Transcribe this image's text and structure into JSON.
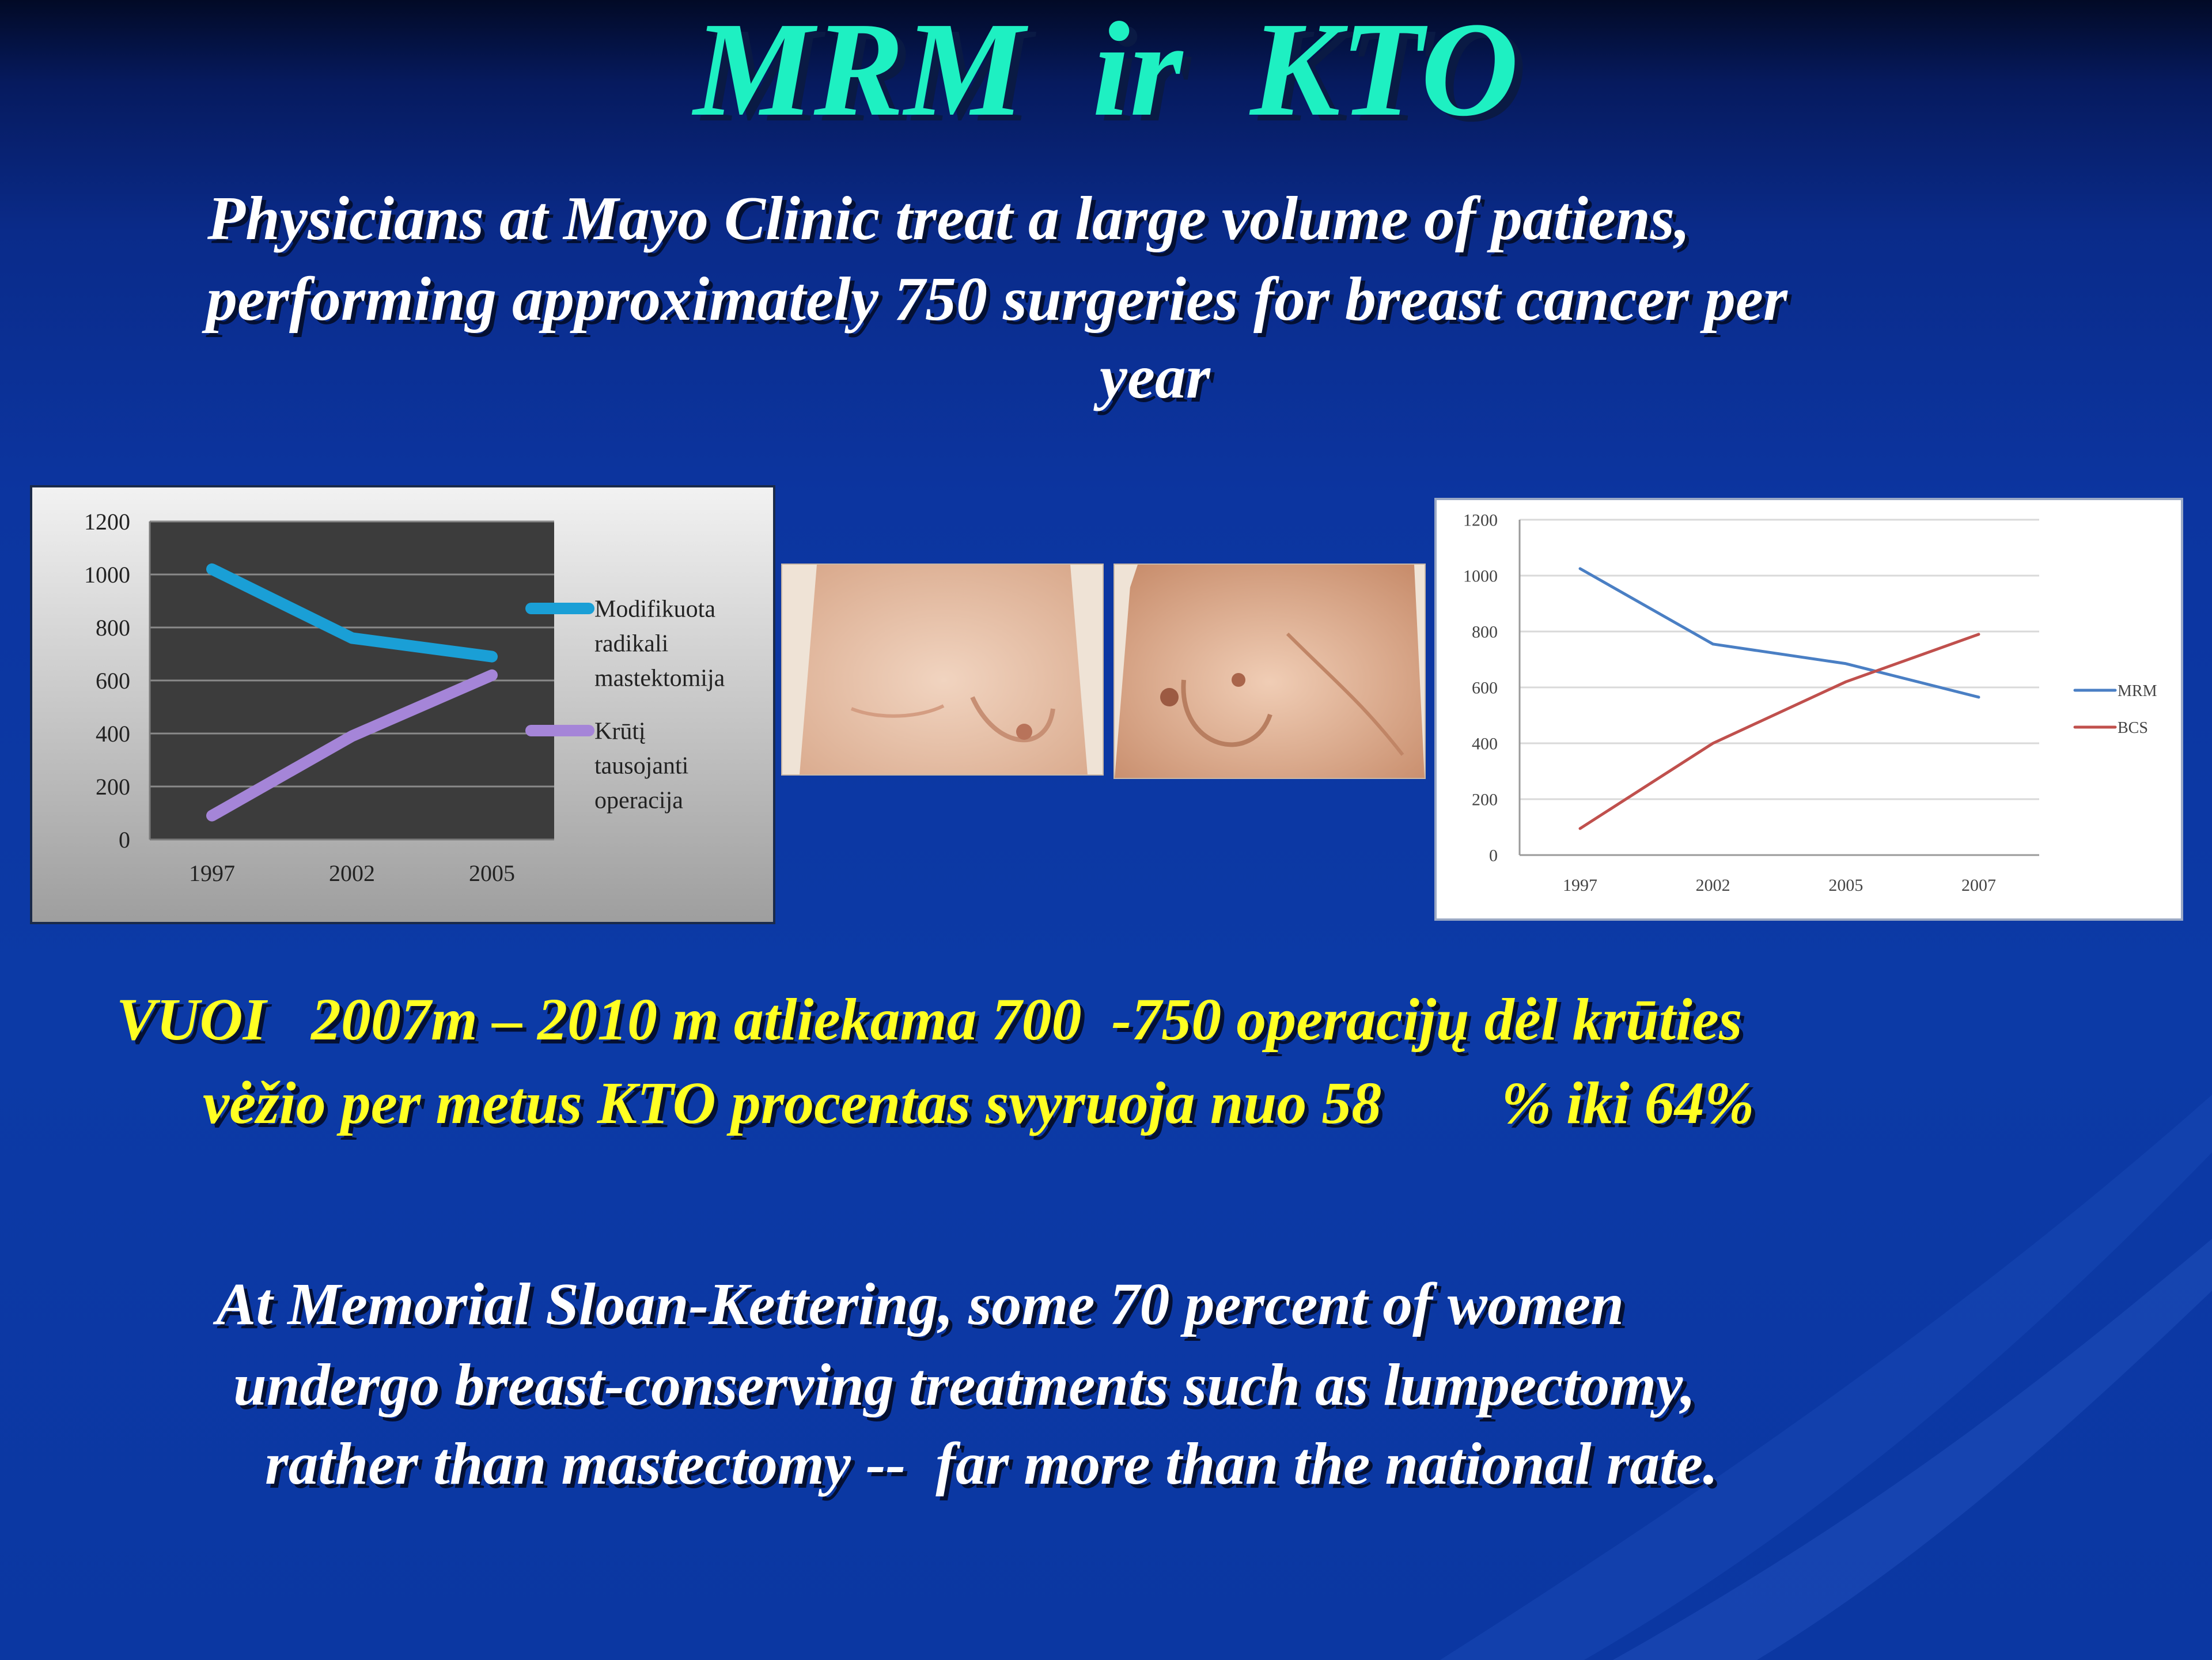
{
  "slide": {
    "title": "MRM  ir  KTO",
    "para1": [
      "Physicians at Mayo Clinic treat a large volume of patiens,",
      "performing approximately 750 surgeries for breast cancer per",
      "year"
    ],
    "para2": [
      "VUOI   2007m – 2010 m atliekama 700  -750 operacijų dėl krūties",
      "vėžio per metus KTO procentas svyruoja nuo 58        % iki 64%"
    ],
    "para3": [
      "At Memorial Sloan-Kettering, some 70 percent of women",
      "undergo breast-conserving treatments such as lumpectomy,",
      "rather than mastectomy --  far more than the national rate."
    ],
    "colors": {
      "title": "#1ef0c2",
      "highlight": "#ffff22",
      "background": "#0c3aa6"
    },
    "photos": [
      "breast-photo-left",
      "breast-photo-right"
    ]
  },
  "chart_data": [
    {
      "type": "line",
      "categories": [
        "1997",
        "2002",
        "2005"
      ],
      "y_ticks": [
        "0",
        "200",
        "400",
        "600",
        "800",
        "1000",
        "1200"
      ],
      "ylim": [
        0,
        1200
      ],
      "grid": true,
      "legend": "right",
      "series": [
        {
          "name": [
            "Modifikuota",
            "radikali",
            "mastektomija"
          ],
          "values": [
            1020,
            760,
            690
          ],
          "color": "#1a9fd6"
        },
        {
          "name": [
            "Krūtį",
            "tausojanti",
            "operacija"
          ],
          "values": [
            90,
            390,
            620
          ],
          "color": "#a585d8"
        }
      ]
    },
    {
      "type": "line",
      "categories": [
        "1997",
        "2002",
        "2005",
        "2007"
      ],
      "y_ticks": [
        "0",
        "200",
        "400",
        "600",
        "800",
        "1000",
        "1200"
      ],
      "ylim": [
        0,
        1200
      ],
      "grid": true,
      "legend": "right",
      "series": [
        {
          "name": "MRM",
          "values": [
            1025,
            755,
            685,
            565
          ],
          "color": "#4a7fc4"
        },
        {
          "name": "BCS",
          "values": [
            95,
            400,
            620,
            790
          ],
          "color": "#c0504d"
        }
      ]
    }
  ]
}
